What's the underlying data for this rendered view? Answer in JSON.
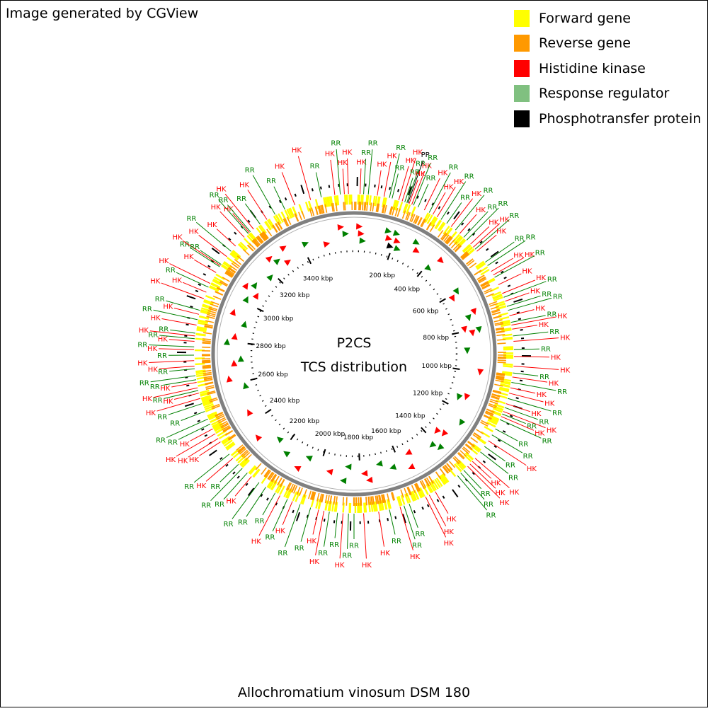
{
  "credit": "Image generated by CGView",
  "legend": [
    {
      "label": "Forward gene",
      "color": "#ffff00"
    },
    {
      "label": "Reverse gene",
      "color": "#ff9900"
    },
    {
      "label": "Histidine kinase",
      "color": "#ff0000"
    },
    {
      "label": "Response regulator",
      "color": "#80c080"
    },
    {
      "label": "Phosphotransfer protein",
      "color": "#000000"
    }
  ],
  "center_title": "P2CS",
  "center_subtitle": "TCS distribution",
  "organism": "Allochromatium vinosum DSM 180",
  "genome_kbp": 3660,
  "kbp_ticks": [
    "200 kbp",
    "400 kbp",
    "600 kbp",
    "800 kbp",
    "1000 kbp",
    "1200 kbp",
    "1400 kbp",
    "1600 kbp",
    "1800 kbp",
    "2000 kbp",
    "2200 kbp",
    "2400 kbp",
    "2600 kbp",
    "2800 kbp",
    "3000 kbp",
    "3200 kbp",
    "3400 kbp"
  ],
  "kbp_values": [
    200,
    400,
    600,
    800,
    1000,
    1200,
    1400,
    1600,
    1800,
    2000,
    2200,
    2400,
    2600,
    2800,
    3000,
    3200,
    3400
  ],
  "feature_colors": {
    "HK": "#ff0000",
    "RR": "#008000",
    "PP": "#000000",
    "forward": "#ffff00",
    "reverse": "#ff9900",
    "backbone": "#808080"
  },
  "callouts": [
    {
      "pos": 22,
      "type": "HK"
    },
    {
      "pos": 35,
      "type": "RR"
    },
    {
      "pos": 52,
      "type": "RR"
    },
    {
      "pos": 85,
      "type": "HK"
    },
    {
      "pos": 110,
      "type": "HK"
    },
    {
      "pos": 130,
      "type": "RR"
    },
    {
      "pos": 140,
      "type": "RR"
    },
    {
      "pos": 165,
      "type": "HK"
    },
    {
      "pos": 178,
      "type": "HK"
    },
    {
      "pos": 188,
      "type": "RR"
    },
    {
      "pos": 196,
      "type": "RR"
    },
    {
      "pos": 200,
      "type": "PP"
    },
    {
      "pos": 205,
      "type": "HK"
    },
    {
      "pos": 215,
      "type": "HK"
    },
    {
      "pos": 222,
      "type": "RR"
    },
    {
      "pos": 240,
      "type": "RR"
    },
    {
      "pos": 265,
      "type": "HK"
    },
    {
      "pos": 285,
      "type": "RR"
    },
    {
      "pos": 300,
      "type": "HK"
    },
    {
      "pos": 318,
      "type": "HK"
    },
    {
      "pos": 335,
      "type": "RR"
    },
    {
      "pos": 360,
      "type": "RR"
    },
    {
      "pos": 380,
      "type": "HK"
    },
    {
      "pos": 400,
      "type": "RR"
    },
    {
      "pos": 420,
      "type": "HK"
    },
    {
      "pos": 440,
      "type": "RR"
    },
    {
      "pos": 455,
      "type": "RR"
    },
    {
      "pos": 475,
      "type": "HK"
    },
    {
      "pos": 490,
      "type": "HK"
    },
    {
      "pos": 500,
      "type": "RR"
    },
    {
      "pos": 510,
      "type": "HK"
    },
    {
      "pos": 560,
      "type": "RR"
    },
    {
      "pos": 575,
      "type": "RR"
    },
    {
      "pos": 600,
      "type": "HK"
    },
    {
      "pos": 615,
      "type": "HK"
    },
    {
      "pos": 625,
      "type": "RR"
    },
    {
      "pos": 655,
      "type": "HK"
    },
    {
      "pos": 690,
      "type": "HK"
    },
    {
      "pos": 705,
      "type": "RR"
    },
    {
      "pos": 720,
      "type": "HK"
    },
    {
      "pos": 740,
      "type": "RR"
    },
    {
      "pos": 755,
      "type": "RR"
    },
    {
      "pos": 775,
      "type": "HK"
    },
    {
      "pos": 800,
      "type": "RR"
    },
    {
      "pos": 810,
      "type": "HK"
    },
    {
      "pos": 825,
      "type": "HK"
    },
    {
      "pos": 850,
      "type": "RR"
    },
    {
      "pos": 870,
      "type": "HK"
    },
    {
      "pos": 900,
      "type": "RR"
    },
    {
      "pos": 925,
      "type": "HK"
    },
    {
      "pos": 960,
      "type": "HK"
    },
    {
      "pos": 985,
      "type": "RR"
    },
    {
      "pos": 1000,
      "type": "HK"
    },
    {
      "pos": 1020,
      "type": "RR"
    },
    {
      "pos": 1040,
      "type": "HK"
    },
    {
      "pos": 1060,
      "type": "HK"
    },
    {
      "pos": 1080,
      "type": "RR"
    },
    {
      "pos": 1100,
      "type": "HK"
    },
    {
      "pos": 1115,
      "type": "RR"
    },
    {
      "pos": 1130,
      "type": "HK"
    },
    {
      "pos": 1140,
      "type": "RR"
    },
    {
      "pos": 1150,
      "type": "HK"
    },
    {
      "pos": 1162,
      "type": "RR"
    },
    {
      "pos": 1200,
      "type": "RR"
    },
    {
      "pos": 1225,
      "type": "RR"
    },
    {
      "pos": 1250,
      "type": "HK"
    },
    {
      "pos": 1275,
      "type": "RR"
    },
    {
      "pos": 1300,
      "type": "RR"
    },
    {
      "pos": 1330,
      "type": "HK"
    },
    {
      "pos": 1345,
      "type": "HK"
    },
    {
      "pos": 1358,
      "type": "HK"
    },
    {
      "pos": 1370,
      "type": "HK"
    },
    {
      "pos": 1390,
      "type": "RR"
    },
    {
      "pos": 1405,
      "type": "RR"
    },
    {
      "pos": 1420,
      "type": "RR"
    },
    {
      "pos": 1520,
      "type": "HK"
    },
    {
      "pos": 1545,
      "type": "HK"
    },
    {
      "pos": 1560,
      "type": "HK"
    },
    {
      "pos": 1625,
      "type": "RR"
    },
    {
      "pos": 1645,
      "type": "RR"
    },
    {
      "pos": 1660,
      "type": "HK"
    },
    {
      "pos": 1700,
      "type": "RR"
    },
    {
      "pos": 1740,
      "type": "HK"
    },
    {
      "pos": 1795,
      "type": "HK"
    },
    {
      "pos": 1830,
      "type": "RR"
    },
    {
      "pos": 1850,
      "type": "RR"
    },
    {
      "pos": 1870,
      "type": "HK"
    },
    {
      "pos": 1890,
      "type": "RR"
    },
    {
      "pos": 1920,
      "type": "RR"
    },
    {
      "pos": 1940,
      "type": "HK"
    },
    {
      "pos": 1960,
      "type": "HK"
    },
    {
      "pos": 1990,
      "type": "RR"
    },
    {
      "pos": 2030,
      "type": "RR"
    },
    {
      "pos": 2060,
      "type": "HK"
    },
    {
      "pos": 2080,
      "type": "RR"
    },
    {
      "pos": 2110,
      "type": "HK"
    },
    {
      "pos": 2130,
      "type": "RR"
    },
    {
      "pos": 2170,
      "type": "RR"
    },
    {
      "pos": 2200,
      "type": "RR"
    },
    {
      "pos": 2235,
      "type": "HK"
    },
    {
      "pos": 2255,
      "type": "RR"
    },
    {
      "pos": 2280,
      "type": "RR"
    },
    {
      "pos": 2300,
      "type": "RR"
    },
    {
      "pos": 2330,
      "type": "HK"
    },
    {
      "pos": 2350,
      "type": "RR"
    },
    {
      "pos": 2405,
      "type": "HK"
    },
    {
      "pos": 2420,
      "type": "HK"
    },
    {
      "pos": 2440,
      "type": "HK"
    },
    {
      "pos": 2460,
      "type": "HK"
    },
    {
      "pos": 2480,
      "type": "RR"
    },
    {
      "pos": 2500,
      "type": "RR"
    },
    {
      "pos": 2530,
      "type": "RR"
    },
    {
      "pos": 2560,
      "type": "RR"
    },
    {
      "pos": 2580,
      "type": "HK"
    },
    {
      "pos": 2600,
      "type": "HK"
    },
    {
      "pos": 2610,
      "type": "RR"
    },
    {
      "pos": 2620,
      "type": "HK"
    },
    {
      "pos": 2640,
      "type": "HK"
    },
    {
      "pos": 2650,
      "type": "RR"
    },
    {
      "pos": 2665,
      "type": "RR"
    },
    {
      "pos": 2690,
      "type": "RR"
    },
    {
      "pos": 2700,
      "type": "HK"
    },
    {
      "pos": 2720,
      "type": "HK"
    },
    {
      "pos": 2740,
      "type": "RR"
    },
    {
      "pos": 2760,
      "type": "HK"
    },
    {
      "pos": 2770,
      "type": "RR"
    },
    {
      "pos": 2790,
      "type": "HK"
    },
    {
      "pos": 2800,
      "type": "RR"
    },
    {
      "pos": 2810,
      "type": "HK"
    },
    {
      "pos": 2820,
      "type": "RR"
    },
    {
      "pos": 2850,
      "type": "HK"
    },
    {
      "pos": 2870,
      "type": "RR"
    },
    {
      "pos": 2890,
      "type": "HK"
    },
    {
      "pos": 2905,
      "type": "RR"
    },
    {
      "pos": 2950,
      "type": "HK"
    },
    {
      "pos": 2975,
      "type": "HK"
    },
    {
      "pos": 2995,
      "type": "RR"
    },
    {
      "pos": 3010,
      "type": "HK"
    },
    {
      "pos": 3055,
      "type": "HK"
    },
    {
      "pos": 3080,
      "type": "RR"
    },
    {
      "pos": 3085,
      "type": "HK"
    },
    {
      "pos": 3090,
      "type": "RR"
    },
    {
      "pos": 3125,
      "type": "HK"
    },
    {
      "pos": 3150,
      "type": "RR"
    },
    {
      "pos": 3175,
      "type": "HK"
    },
    {
      "pos": 3220,
      "type": "HK"
    },
    {
      "pos": 3240,
      "type": "RR"
    },
    {
      "pos": 3245,
      "type": "HK"
    },
    {
      "pos": 3250,
      "type": "RR"
    },
    {
      "pos": 3265,
      "type": "HK"
    },
    {
      "pos": 3295,
      "type": "RR"
    },
    {
      "pos": 3325,
      "type": "HK"
    },
    {
      "pos": 3360,
      "type": "RR"
    },
    {
      "pos": 3400,
      "type": "RR"
    },
    {
      "pos": 3440,
      "type": "HK"
    },
    {
      "pos": 3500,
      "type": "HK"
    },
    {
      "pos": 3540,
      "type": "RR"
    },
    {
      "pos": 3590,
      "type": "HK"
    },
    {
      "pos": 3610,
      "type": "RR"
    },
    {
      "pos": 3625,
      "type": "HK"
    },
    {
      "pos": 3640,
      "type": "HK"
    }
  ],
  "inner_markers": [
    {
      "pos": 25,
      "type": "HK"
    },
    {
      "pos": 35,
      "type": "HK"
    },
    {
      "pos": 45,
      "type": "RR"
    },
    {
      "pos": 160,
      "type": "RR"
    },
    {
      "pos": 172,
      "type": "HK"
    },
    {
      "pos": 190,
      "type": "PP"
    },
    {
      "pos": 200,
      "type": "RR"
    },
    {
      "pos": 215,
      "type": "HK"
    },
    {
      "pos": 230,
      "type": "RR"
    },
    {
      "pos": 300,
      "type": "RR"
    },
    {
      "pos": 320,
      "type": "HK"
    },
    {
      "pos": 420,
      "type": "RR"
    },
    {
      "pos": 440,
      "type": "HK"
    },
    {
      "pos": 600,
      "type": "RR"
    },
    {
      "pos": 620,
      "type": "HK"
    },
    {
      "pos": 720,
      "type": "HK"
    },
    {
      "pos": 740,
      "type": "RR"
    },
    {
      "pos": 790,
      "type": "HK"
    },
    {
      "pos": 805,
      "type": "RR"
    },
    {
      "pos": 815,
      "type": "HK"
    },
    {
      "pos": 900,
      "type": "RR"
    },
    {
      "pos": 1000,
      "type": "HK"
    },
    {
      "pos": 1130,
      "type": "HK"
    },
    {
      "pos": 1145,
      "type": "RR"
    },
    {
      "pos": 1250,
      "type": "RR"
    },
    {
      "pos": 1340,
      "type": "HK"
    },
    {
      "pos": 1355,
      "type": "HK"
    },
    {
      "pos": 1400,
      "type": "RR"
    },
    {
      "pos": 1420,
      "type": "RR"
    },
    {
      "pos": 1540,
      "type": "HK"
    },
    {
      "pos": 1560,
      "type": "HK"
    },
    {
      "pos": 1640,
      "type": "RR"
    },
    {
      "pos": 1700,
      "type": "RR"
    },
    {
      "pos": 1760,
      "type": "HK"
    },
    {
      "pos": 1780,
      "type": "HK"
    },
    {
      "pos": 1860,
      "type": "RR"
    },
    {
      "pos": 1880,
      "type": "RR"
    },
    {
      "pos": 1950,
      "type": "HK"
    },
    {
      "pos": 2070,
      "type": "RR"
    },
    {
      "pos": 2100,
      "type": "HK"
    },
    {
      "pos": 2180,
      "type": "RR"
    },
    {
      "pos": 2250,
      "type": "RR"
    },
    {
      "pos": 2330,
      "type": "HK"
    },
    {
      "pos": 2450,
      "type": "HK"
    },
    {
      "pos": 2580,
      "type": "RR"
    },
    {
      "pos": 2630,
      "type": "HK"
    },
    {
      "pos": 2700,
      "type": "HK"
    },
    {
      "pos": 2720,
      "type": "RR"
    },
    {
      "pos": 2800,
      "type": "RR"
    },
    {
      "pos": 2830,
      "type": "HK"
    },
    {
      "pos": 2900,
      "type": "RR"
    },
    {
      "pos": 2940,
      "type": "HK"
    },
    {
      "pos": 3020,
      "type": "RR"
    },
    {
      "pos": 3060,
      "type": "HK"
    },
    {
      "pos": 3075,
      "type": "HK"
    },
    {
      "pos": 3100,
      "type": "RR"
    },
    {
      "pos": 3180,
      "type": "RR"
    },
    {
      "pos": 3240,
      "type": "HK"
    },
    {
      "pos": 3260,
      "type": "RR"
    },
    {
      "pos": 3300,
      "type": "HK"
    },
    {
      "pos": 3320,
      "type": "HK"
    },
    {
      "pos": 3420,
      "type": "RR"
    },
    {
      "pos": 3520,
      "type": "HK"
    },
    {
      "pos": 3600,
      "type": "HK"
    },
    {
      "pos": 3620,
      "type": "RR"
    }
  ]
}
